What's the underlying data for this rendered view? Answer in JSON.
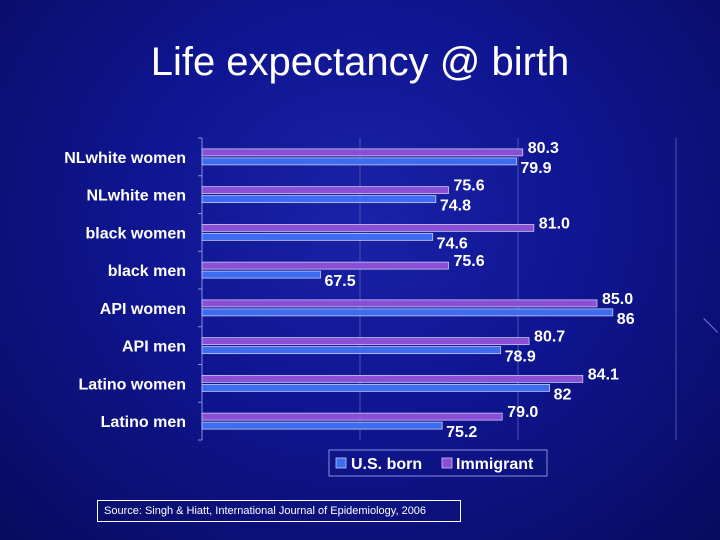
{
  "title": "Life expectancy @ birth",
  "source": "Source: Singh & Hiatt, International Journal of Epidemiology, 2006",
  "colors": {
    "us_born": "#3d6cf0",
    "immigrant": "#8a4fd6",
    "text": "#ffffff",
    "grid": "#4a53b5"
  },
  "chart_data": {
    "type": "bar",
    "orientation": "horizontal",
    "categories": [
      "NLwhite women",
      "NLwhite men",
      "black women",
      "black men",
      "API women",
      "API men",
      "Latino women",
      "Latino men"
    ],
    "series": [
      {
        "name": "U.S. born",
        "values": [
          79.9,
          74.8,
          74.6,
          67.5,
          86,
          78.9,
          82,
          75.2
        ],
        "labels": [
          "79.9",
          "74.8",
          "74.6",
          "67.5",
          "86",
          "78.9",
          "82",
          "75.2"
        ]
      },
      {
        "name": "Immigrant",
        "values": [
          80.3,
          75.6,
          81.0,
          75.6,
          85.0,
          80.7,
          84.1,
          79.0
        ],
        "labels": [
          "80.3",
          "75.6",
          "81.0",
          "75.6",
          "85.0",
          "80.7",
          "84.1",
          "79.0"
        ]
      }
    ],
    "xlim": [
      60,
      90
    ],
    "grid": true,
    "legend": "bottom"
  }
}
